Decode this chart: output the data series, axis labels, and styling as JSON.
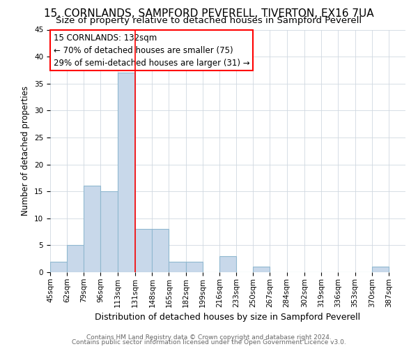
{
  "title1": "15, CORNLANDS, SAMPFORD PEVERELL, TIVERTON, EX16 7UA",
  "title2": "Size of property relative to detached houses in Sampford Peverell",
  "xlabel": "Distribution of detached houses by size in Sampford Peverell",
  "ylabel": "Number of detached properties",
  "footer1": "Contains HM Land Registry data © Crown copyright and database right 2024.",
  "footer2": "Contains public sector information licensed under the Open Government Licence v3.0.",
  "bin_edges": [
    45,
    62,
    79,
    96,
    113,
    131,
    148,
    165,
    182,
    199,
    216,
    233,
    250,
    267,
    284,
    302,
    319,
    336,
    353,
    370,
    387
  ],
  "counts": [
    2,
    5,
    16,
    15,
    37,
    8,
    8,
    2,
    2,
    0,
    3,
    0,
    1,
    0,
    0,
    0,
    0,
    0,
    0,
    1
  ],
  "bar_color": "#c8d8ea",
  "bar_edgecolor": "#90b8d0",
  "redline_x": 131,
  "annotation_title": "15 CORNLANDS: 132sqm",
  "annotation_line1": "← 70% of detached houses are smaller (75)",
  "annotation_line2": "29% of semi-detached houses are larger (31) →",
  "ylim": [
    0,
    45
  ],
  "yticks": [
    0,
    5,
    10,
    15,
    20,
    25,
    30,
    35,
    40,
    45
  ],
  "title1_fontsize": 11,
  "title2_fontsize": 9.5,
  "xlabel_fontsize": 9,
  "ylabel_fontsize": 8.5,
  "tick_fontsize": 7.5,
  "annotation_fontsize": 8.5,
  "footer_fontsize": 6.5
}
